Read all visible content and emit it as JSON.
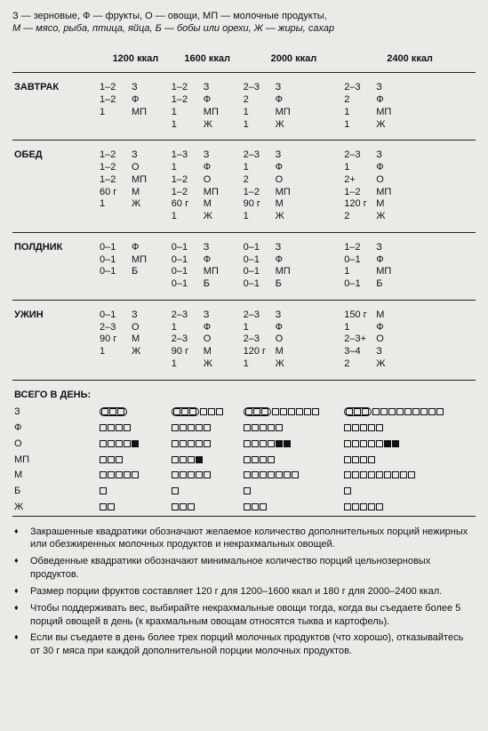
{
  "legend_line1": "З — зерновые, Ф — фрукты, О — овощи, МП — молочные продукты,",
  "legend_line2": "М — мясо, рыба, птица, яйца, Б — бобы или орехи, Ж — жиры, сахар",
  "columns": [
    "1200 ккал",
    "1600 ккал",
    "2000 ккал",
    "2400 ккал"
  ],
  "meals": [
    {
      "name": "ЗАВТРАК",
      "c": [
        [
          [
            "1–2",
            "З"
          ],
          [
            "1–2",
            "Ф"
          ],
          [
            "1",
            "МП"
          ]
        ],
        [
          [
            "1–2",
            "З"
          ],
          [
            "1–2",
            "Ф"
          ],
          [
            "1",
            "МП"
          ],
          [
            "1",
            "Ж"
          ]
        ],
        [
          [
            "2–3",
            "З"
          ],
          [
            "2",
            "Ф"
          ],
          [
            "1",
            "МП"
          ],
          [
            "1",
            "Ж"
          ]
        ],
        [
          [
            "2–3",
            "З"
          ],
          [
            "2",
            "Ф"
          ],
          [
            "1",
            "МП"
          ],
          [
            "1",
            "Ж"
          ]
        ]
      ]
    },
    {
      "name": "ОБЕД",
      "c": [
        [
          [
            "1–2",
            "З"
          ],
          [
            "1–2",
            "О"
          ],
          [
            "1–2",
            "МП"
          ],
          [
            "60 г",
            "М"
          ],
          [
            "1",
            "Ж"
          ]
        ],
        [
          [
            "1–3",
            "З"
          ],
          [
            "1",
            "Ф"
          ],
          [
            "1–2",
            "О"
          ],
          [
            "1–2",
            "МП"
          ],
          [
            "60 г",
            "М"
          ],
          [
            "1",
            "Ж"
          ]
        ],
        [
          [
            "2–3",
            "З"
          ],
          [
            "1",
            "Ф"
          ],
          [
            "2",
            "О"
          ],
          [
            "1–2",
            "МП"
          ],
          [
            "90 г",
            "М"
          ],
          [
            "1",
            "Ж"
          ]
        ],
        [
          [
            "2–3",
            "З"
          ],
          [
            "1",
            "Ф"
          ],
          [
            "2+",
            "О"
          ],
          [
            "1–2",
            "МП"
          ],
          [
            "120 г",
            "М"
          ],
          [
            "2",
            "Ж"
          ]
        ]
      ]
    },
    {
      "name": "ПОЛДНИК",
      "c": [
        [
          [
            "0–1",
            "Ф"
          ],
          [
            "0–1",
            "МП"
          ],
          [
            "0–1",
            "Б"
          ]
        ],
        [
          [
            "0–1",
            "З"
          ],
          [
            "0–1",
            "Ф"
          ],
          [
            "0–1",
            "МП"
          ],
          [
            "0–1",
            "Б"
          ]
        ],
        [
          [
            "0–1",
            "З"
          ],
          [
            "0–1",
            "Ф"
          ],
          [
            "0–1",
            "МП"
          ],
          [
            "0–1",
            "Б"
          ]
        ],
        [
          [
            "1–2",
            "З"
          ],
          [
            "0–1",
            "Ф"
          ],
          [
            "1",
            "МП"
          ],
          [
            "0–1",
            "Б"
          ]
        ]
      ]
    },
    {
      "name": "УЖИН",
      "c": [
        [
          [
            "0–1",
            "З"
          ],
          [
            "2–3",
            "О"
          ],
          [
            "90 г",
            "М"
          ],
          [
            "1",
            "Ж"
          ]
        ],
        [
          [
            "2–3",
            "З"
          ],
          [
            "1",
            "Ф"
          ],
          [
            "2–3",
            "О"
          ],
          [
            "90 г",
            "М"
          ],
          [
            "1",
            "Ж"
          ]
        ],
        [
          [
            "2–3",
            "З"
          ],
          [
            "1",
            "Ф"
          ],
          [
            "2–3",
            "О"
          ],
          [
            "120 г",
            "М"
          ],
          [
            "1",
            "Ж"
          ]
        ],
        [
          [
            "150 г",
            "М"
          ],
          [
            "1",
            "Ф"
          ],
          [
            "2–3+",
            "О"
          ],
          [
            "3–4",
            "З"
          ],
          [
            "2",
            "Ж"
          ]
        ]
      ]
    }
  ],
  "totals_title": "ВСЕГО В ДЕНЬ:",
  "totals_rows": [
    {
      "k": "З",
      "c": [
        {
          "circ": 3,
          "e": 0,
          "f": 0
        },
        {
          "circ": 3,
          "e": 3,
          "f": 0
        },
        {
          "circ": 3,
          "e": 6,
          "f": 0
        },
        {
          "circ": 3,
          "e": 9,
          "f": 0
        }
      ]
    },
    {
      "k": "Ф",
      "c": [
        {
          "circ": 0,
          "e": 4,
          "f": 0
        },
        {
          "circ": 0,
          "e": 5,
          "f": 0
        },
        {
          "circ": 0,
          "e": 5,
          "f": 0
        },
        {
          "circ": 0,
          "e": 5,
          "f": 0
        }
      ]
    },
    {
      "k": "О",
      "c": [
        {
          "circ": 0,
          "e": 4,
          "f": 1
        },
        {
          "circ": 0,
          "e": 5,
          "f": 0
        },
        {
          "circ": 0,
          "e": 4,
          "f": 2
        },
        {
          "circ": 0,
          "e": 5,
          "f": 2
        }
      ]
    },
    {
      "k": "МП",
      "c": [
        {
          "circ": 0,
          "e": 3,
          "f": 0
        },
        {
          "circ": 0,
          "e": 3,
          "f": 1
        },
        {
          "circ": 0,
          "e": 4,
          "f": 0
        },
        {
          "circ": 0,
          "e": 4,
          "f": 0
        }
      ]
    },
    {
      "k": "М",
      "c": [
        {
          "circ": 0,
          "e": 5,
          "f": 0
        },
        {
          "circ": 0,
          "e": 5,
          "f": 0
        },
        {
          "circ": 0,
          "e": 7,
          "f": 0
        },
        {
          "circ": 0,
          "e": 9,
          "f": 0
        }
      ]
    },
    {
      "k": "Б",
      "c": [
        {
          "circ": 0,
          "e": 1,
          "f": 0
        },
        {
          "circ": 0,
          "e": 1,
          "f": 0
        },
        {
          "circ": 0,
          "e": 1,
          "f": 0
        },
        {
          "circ": 0,
          "e": 1,
          "f": 0
        }
      ]
    },
    {
      "k": "Ж",
      "c": [
        {
          "circ": 0,
          "e": 2,
          "f": 0
        },
        {
          "circ": 0,
          "e": 3,
          "f": 0
        },
        {
          "circ": 0,
          "e": 3,
          "f": 0
        },
        {
          "circ": 0,
          "e": 5,
          "f": 0
        }
      ]
    }
  ],
  "notes": [
    "Закрашенные квадратики обозначают желаемое количество дополнительных порций нежирных или обезжиренных молочных продуктов и некрахмальных овощей.",
    "Обведенные квадратики обозначают минимальное количество порций цельнозерновых продуктов.",
    "Размер порции фруктов составляет 120 г для 1200–1600 ккал и 180 г для 2000–2400 ккал.",
    "Чтобы поддерживать вес, выбирайте некрахмальные овощи тогда, когда вы съедаете более 5 порций овощей в день (к крахмальным овощам относятся тыква и картофель).",
    "Если вы съедаете в день более трех порций молочных продуктов (что хорошо), отказывайтесь от 30 г мяса при каждой дополнительной порции молочных продуктов."
  ]
}
